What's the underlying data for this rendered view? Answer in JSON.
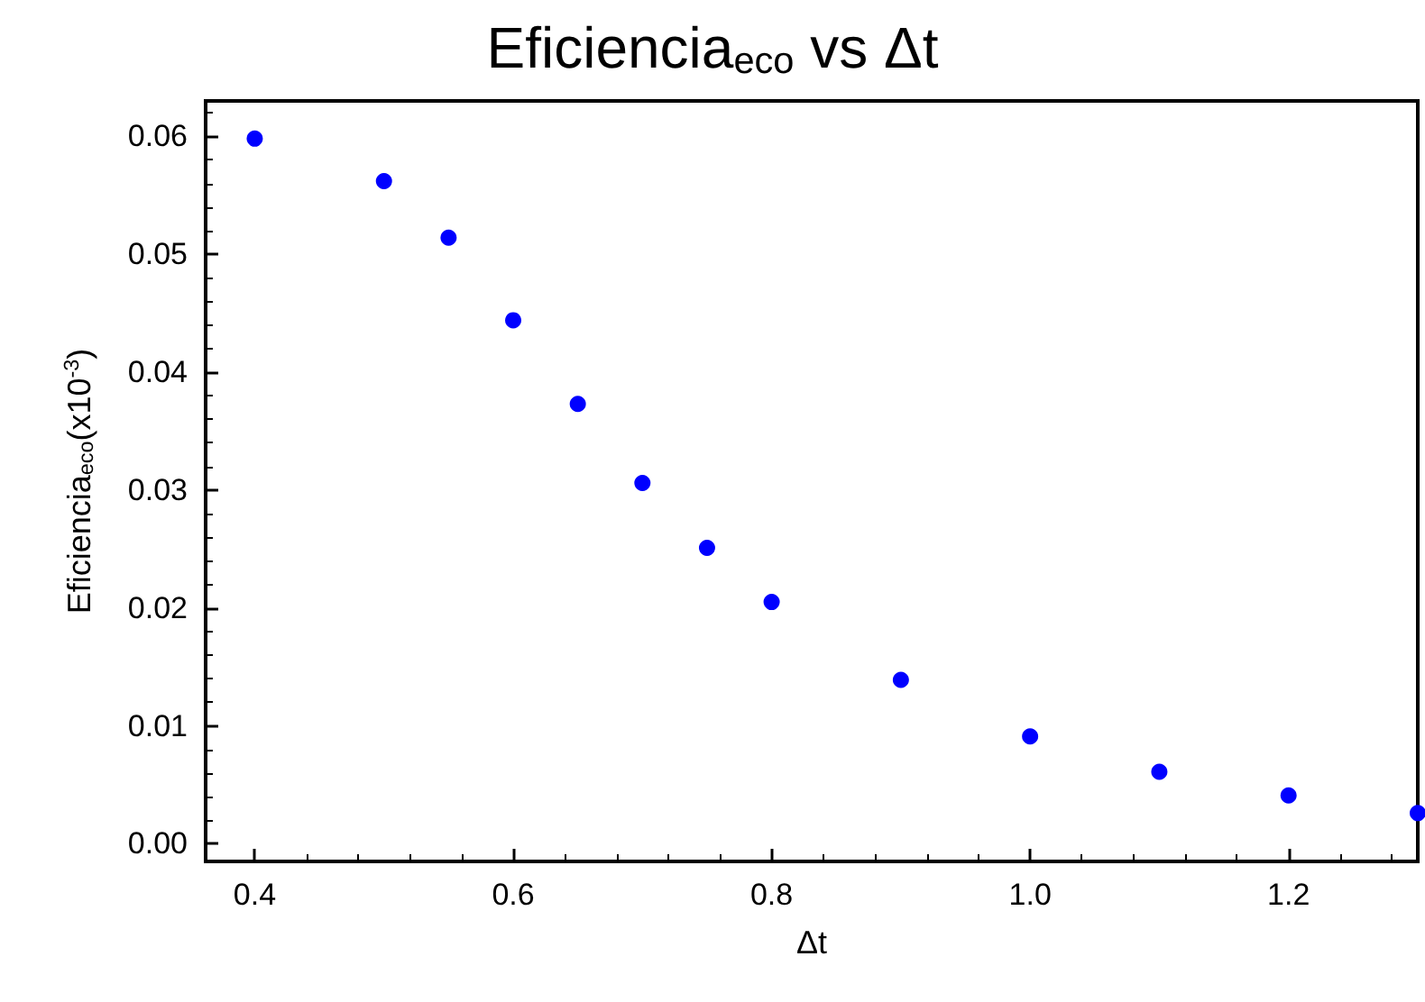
{
  "chart_data": {
    "type": "scatter",
    "title": "Eficiencia$_{eco}$ vs Δt",
    "xlabel": "Δt",
    "ylabel": "Eficiencia$_{eco}$(x10$^{-3}$)",
    "x": [
      0.4,
      0.5,
      0.55,
      0.6,
      0.65,
      0.7,
      0.75,
      0.8,
      0.9,
      1.0,
      1.1,
      1.2,
      1.3
    ],
    "series": [
      {
        "color": "#0000ff",
        "values": [
          0.0598,
          0.0562,
          0.0514,
          0.0444,
          0.0373,
          0.0306,
          0.0251,
          0.0205,
          0.0139,
          0.0091,
          0.0061,
          0.0041,
          0.0026
        ]
      }
    ],
    "xlim": [
      0.362,
      1.3
    ],
    "xticks": [
      0.4,
      0.6,
      0.8,
      {
        "value": 1.0,
        "label": "1.0"
      },
      1.2
    ],
    "ylim": [
      -0.0015,
      0.063
    ],
    "yticks": [
      {
        "value": 0,
        "label": "0.00"
      },
      0.01,
      0.02,
      0.03,
      0.04,
      0.05,
      0.06
    ],
    "marker": "circle",
    "grid": false
  }
}
